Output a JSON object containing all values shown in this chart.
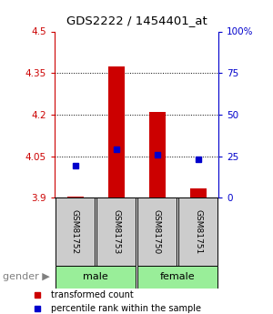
{
  "title": "GDS2222 / 1454401_at",
  "samples": [
    "GSM81752",
    "GSM81753",
    "GSM81750",
    "GSM81751"
  ],
  "gender_groups": [
    [
      "male",
      1,
      2
    ],
    [
      "female",
      3,
      4
    ]
  ],
  "red_values": [
    3.905,
    4.375,
    4.21,
    3.935
  ],
  "blue_values": [
    4.015,
    4.075,
    4.055,
    4.04
  ],
  "baseline": 3.9,
  "ylim_left": [
    3.9,
    4.5
  ],
  "ylim_right": [
    0,
    100
  ],
  "yticks_left": [
    3.9,
    4.05,
    4.2,
    4.35,
    4.5
  ],
  "yticks_right": [
    0,
    25,
    50,
    75,
    100
  ],
  "ytick_labels_left": [
    "3.9",
    "4.05",
    "4.2",
    "4.35",
    "4.5"
  ],
  "ytick_labels_right": [
    "0",
    "25",
    "50",
    "75",
    "100%"
  ],
  "grid_ticks": [
    4.05,
    4.2,
    4.35
  ],
  "red_color": "#cc0000",
  "blue_color": "#0000cc",
  "bar_width": 0.4,
  "green_color": "#99ee99",
  "sample_box_color": "#cccccc",
  "legend_red": "transformed count",
  "legend_blue": "percentile rank within the sample",
  "gender_label": "gender"
}
